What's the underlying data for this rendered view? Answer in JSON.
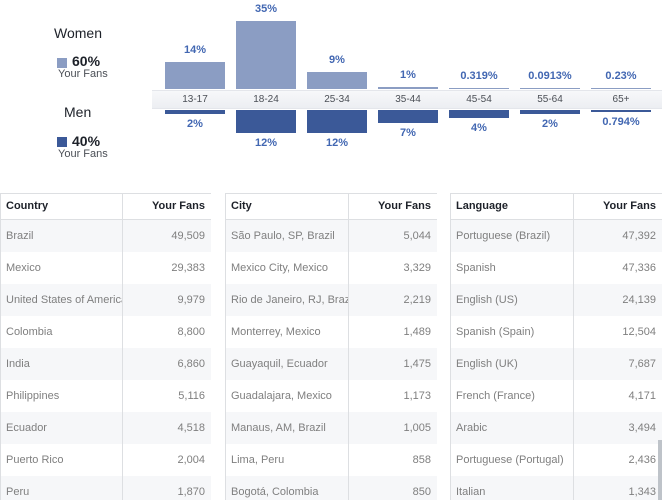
{
  "legend": {
    "women": {
      "title": "Women",
      "percent": "60%",
      "sub": "Your Fans",
      "color": "#8b9dc3"
    },
    "men": {
      "title": "Men",
      "percent": "40%",
      "sub": "Your Fans",
      "color": "#3b5998"
    }
  },
  "chart_data": {
    "type": "bar",
    "categories": [
      "13-17",
      "18-24",
      "25-34",
      "35-44",
      "45-54",
      "55-64",
      "65+"
    ],
    "series": [
      {
        "name": "Women",
        "values": [
          14,
          35,
          9,
          1,
          0.319,
          0.0913,
          0.23
        ],
        "labels": [
          "14%",
          "35%",
          "9%",
          "1%",
          "0.319%",
          "0.0913%",
          "0.23%"
        ],
        "color": "#8b9dc3"
      },
      {
        "name": "Men",
        "values": [
          2,
          12,
          12,
          7,
          4,
          2,
          0.794
        ],
        "labels": [
          "2%",
          "12%",
          "12%",
          "7%",
          "4%",
          "2%",
          "0.794%"
        ],
        "color": "#3b5998"
      }
    ],
    "ylim": [
      0,
      35
    ]
  },
  "tables": {
    "country": {
      "header": [
        "Country",
        "Your Fans"
      ],
      "rows": [
        [
          "Brazil",
          "49,509"
        ],
        [
          "Mexico",
          "29,383"
        ],
        [
          "United States of America",
          "9,979"
        ],
        [
          "Colombia",
          "8,800"
        ],
        [
          "India",
          "6,860"
        ],
        [
          "Philippines",
          "5,116"
        ],
        [
          "Ecuador",
          "4,518"
        ],
        [
          "Puerto Rico",
          "2,004"
        ],
        [
          "Peru",
          "1,870"
        ]
      ]
    },
    "city": {
      "header": [
        "City",
        "Your Fans"
      ],
      "rows": [
        [
          "São Paulo, SP, Brazil",
          "5,044"
        ],
        [
          "Mexico City, Mexico",
          "3,329"
        ],
        [
          "Rio de Janeiro, RJ, Brazil",
          "2,219"
        ],
        [
          "Monterrey, Mexico",
          "1,489"
        ],
        [
          "Guayaquil, Ecuador",
          "1,475"
        ],
        [
          "Guadalajara, Mexico",
          "1,173"
        ],
        [
          "Manaus, AM, Brazil",
          "1,005"
        ],
        [
          "Lima, Peru",
          "858"
        ],
        [
          "Bogotá, Colombia",
          "850"
        ]
      ]
    },
    "language": {
      "header": [
        "Language",
        "Your Fans"
      ],
      "rows": [
        [
          "Portuguese (Brazil)",
          "47,392"
        ],
        [
          "Spanish",
          "47,336"
        ],
        [
          "English (US)",
          "24,139"
        ],
        [
          "Spanish (Spain)",
          "12,504"
        ],
        [
          "English (UK)",
          "7,687"
        ],
        [
          "French (France)",
          "4,171"
        ],
        [
          "Arabic",
          "3,494"
        ],
        [
          "Portuguese (Portugal)",
          "2,436"
        ],
        [
          "Italian",
          "1,343"
        ]
      ]
    }
  }
}
